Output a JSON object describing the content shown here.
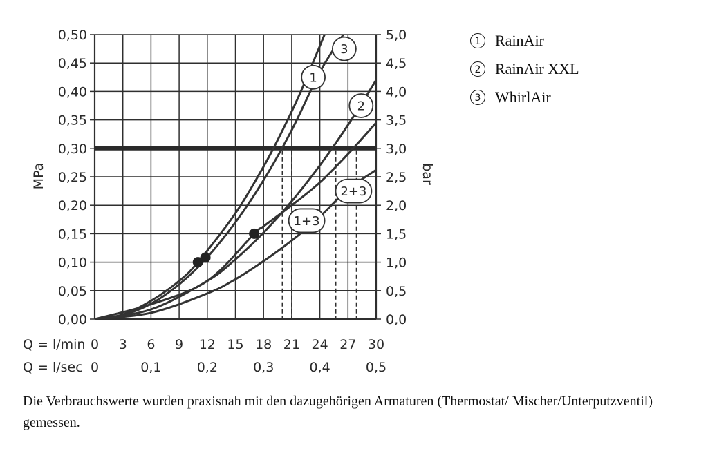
{
  "chart_data": {
    "type": "line",
    "y_left": {
      "label": "MPa",
      "ticks": [
        "0,00",
        "0,05",
        "0,10",
        "0,15",
        "0,20",
        "0,25",
        "0,30",
        "0,35",
        "0,40",
        "0,45",
        "0,50"
      ],
      "range": [
        0,
        0.5
      ]
    },
    "y_right": {
      "label": "bar",
      "ticks": [
        "0,0",
        "0,5",
        "1,0",
        "1,5",
        "2,0",
        "2,5",
        "3,0",
        "3,5",
        "4,0",
        "4,5",
        "5,0"
      ],
      "range": [
        0,
        5
      ]
    },
    "x_axis": {
      "label": "Q = l/min",
      "range": [
        0,
        30
      ],
      "ticks": [
        "0",
        "3",
        "6",
        "9",
        "12",
        "15",
        "18",
        "21",
        "24",
        "27",
        "30"
      ],
      "secondary_label": "Q = l/sec",
      "secondary_ticks": [
        {
          "x": 0,
          "text": "0"
        },
        {
          "x": 6,
          "text": "0,1"
        },
        {
          "x": 12,
          "text": "0,2"
        },
        {
          "x": 18,
          "text": "0,3"
        },
        {
          "x": 24,
          "text": "0,4"
        },
        {
          "x": 30,
          "text": "0,5"
        }
      ]
    },
    "grid": true,
    "reference_line": {
      "y": 0.3
    },
    "series": [
      {
        "name": "1",
        "x": [
          0,
          3,
          6,
          9,
          11,
          15,
          18,
          20,
          22,
          24.5
        ],
        "y": [
          0,
          0.008,
          0.032,
          0.067,
          0.1,
          0.186,
          0.268,
          0.331,
          0.401,
          0.5
        ]
      },
      {
        "name": "3",
        "x": [
          0,
          3,
          6,
          9,
          11.8,
          15,
          18,
          21,
          24,
          26.5
        ],
        "y": [
          0,
          0.007,
          0.027,
          0.061,
          0.105,
          0.17,
          0.244,
          0.332,
          0.434,
          0.5
        ]
      },
      {
        "name": "2",
        "x": [
          0,
          6,
          12,
          15,
          18,
          21,
          24,
          27,
          30
        ],
        "y": [
          0,
          0.017,
          0.067,
          0.105,
          0.152,
          0.207,
          0.27,
          0.341,
          0.42
        ]
      },
      {
        "name": "2+3",
        "x": [
          0,
          6,
          12,
          17,
          18,
          21,
          24,
          27,
          30
        ],
        "y": [
          0,
          0.026,
          0.067,
          0.15,
          0.163,
          0.2,
          0.24,
          0.29,
          0.345
        ]
      },
      {
        "name": "1+3",
        "x": [
          0,
          6,
          12,
          15,
          18,
          21,
          24,
          27,
          30
        ],
        "y": [
          0,
          0.011,
          0.045,
          0.07,
          0.102,
          0.138,
          0.18,
          0.228,
          0.262
        ]
      }
    ],
    "markers": [
      {
        "x": 11,
        "y": 0.1
      },
      {
        "x": 11.8,
        "y": 0.108
      },
      {
        "x": 17,
        "y": 0.15
      }
    ],
    "drop_lines": [
      {
        "x": 20
      },
      {
        "x": 21
      },
      {
        "x": 25.7
      },
      {
        "x": 27.9
      }
    ],
    "curve_labels": [
      {
        "text": "1",
        "x": 23.3,
        "y": 0.425
      },
      {
        "text": "3",
        "x": 26.6,
        "y": 0.475
      },
      {
        "text": "2",
        "x": 28.4,
        "y": 0.375
      },
      {
        "text": "2+3",
        "x": 27.6,
        "y": 0.225
      },
      {
        "text": "1+3",
        "x": 22.6,
        "y": 0.173
      }
    ]
  },
  "legend": [
    {
      "num": "1",
      "label": "RainAir"
    },
    {
      "num": "2",
      "label": "RainAir XXL"
    },
    {
      "num": "3",
      "label": "WhirlAir"
    }
  ],
  "caption": "Die Verbrauchswerte wurden praxisnah mit den dazugehörigen Armaturen (Thermostat/ Mischer/Unterputzventil) gemessen."
}
